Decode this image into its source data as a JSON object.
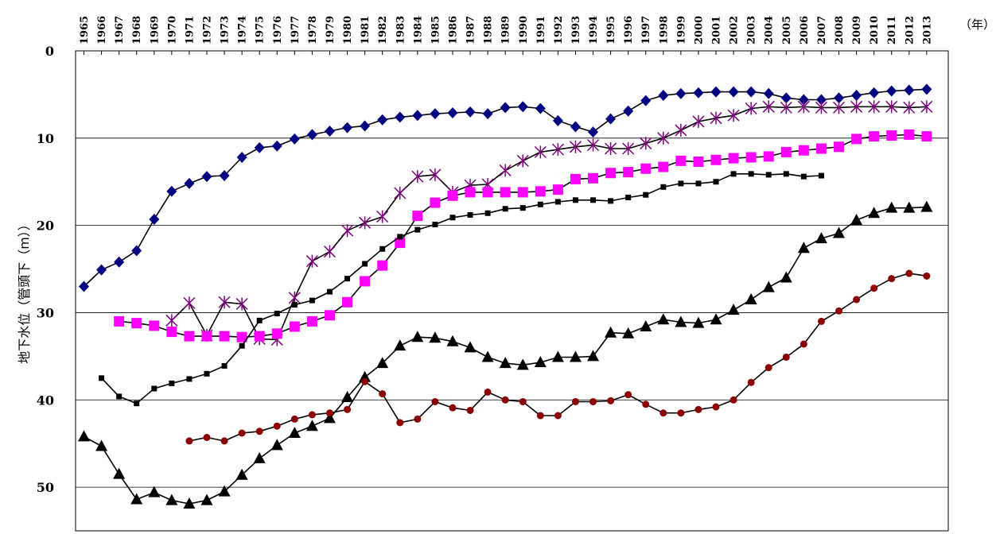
{
  "chart_data": {
    "type": "line",
    "title": "",
    "xlabel": "",
    "x_unit": "（年）",
    "ylabel": "地下水位（管頭下（m））",
    "y_inverted": true,
    "ylim": [
      0,
      55
    ],
    "yticks": [
      0,
      10,
      20,
      30,
      40,
      50
    ],
    "grid": "horizontal",
    "legend": "none",
    "x": [
      1965,
      1966,
      1967,
      1968,
      1969,
      1970,
      1971,
      1972,
      1973,
      1974,
      1975,
      1976,
      1977,
      1978,
      1979,
      1980,
      1981,
      1982,
      1983,
      1984,
      1985,
      1986,
      1987,
      1988,
      1989,
      1990,
      1991,
      1992,
      1993,
      1994,
      1995,
      1996,
      1997,
      1998,
      1999,
      2000,
      2001,
      2002,
      2003,
      2004,
      2005,
      2006,
      2007,
      2008,
      2009,
      2010,
      2011,
      2012,
      2013
    ],
    "series": [
      {
        "color": "#000080",
        "marker": "diamond",
        "values": [
          27.0,
          25.1,
          24.2,
          22.9,
          19.3,
          16.1,
          15.2,
          14.4,
          14.3,
          12.2,
          11.1,
          10.9,
          10.1,
          9.6,
          9.2,
          8.8,
          8.6,
          7.9,
          7.6,
          7.4,
          7.2,
          7.1,
          7.0,
          7.2,
          6.5,
          6.4,
          6.6,
          8.0,
          8.7,
          9.3,
          7.8,
          6.9,
          5.7,
          5.1,
          4.9,
          4.8,
          4.7,
          4.7,
          4.7,
          4.9,
          5.4,
          5.6,
          5.6,
          5.4,
          5.1,
          4.8,
          4.6,
          4.5,
          4.4
        ]
      },
      {
        "color": "#800080",
        "marker": "asterisk",
        "values": [
          null,
          null,
          null,
          null,
          null,
          30.9,
          28.9,
          32.6,
          28.8,
          29.0,
          33.0,
          33.1,
          28.3,
          24.1,
          23.0,
          20.6,
          19.7,
          19.0,
          16.3,
          14.4,
          14.2,
          16.2,
          15.4,
          15.3,
          13.7,
          12.6,
          11.6,
          11.3,
          11.0,
          10.8,
          11.2,
          11.2,
          10.6,
          10.0,
          9.1,
          8.1,
          7.7,
          7.4,
          6.6,
          6.4,
          6.5,
          6.4,
          6.5,
          6.5,
          6.4,
          6.4,
          6.4,
          6.5,
          6.4
        ]
      },
      {
        "color": "#FF00FF",
        "marker": "square",
        "values": [
          null,
          null,
          31.0,
          31.2,
          31.5,
          32.2,
          32.7,
          32.7,
          32.7,
          32.8,
          32.7,
          32.4,
          31.6,
          31.0,
          30.3,
          28.8,
          26.4,
          24.6,
          22.0,
          18.9,
          17.4,
          16.6,
          16.2,
          16.2,
          16.2,
          16.2,
          16.1,
          15.9,
          14.7,
          14.6,
          14.0,
          13.9,
          13.5,
          13.3,
          12.6,
          12.7,
          12.5,
          12.3,
          12.2,
          12.1,
          11.6,
          11.4,
          11.2,
          11.0,
          10.1,
          9.8,
          9.7,
          9.6,
          9.8
        ]
      },
      {
        "color": "#000000",
        "marker": "small-square",
        "values": [
          null,
          37.5,
          39.6,
          40.4,
          38.7,
          38.1,
          37.6,
          37.0,
          36.1,
          33.8,
          30.9,
          30.1,
          29.1,
          28.6,
          27.6,
          26.1,
          24.4,
          22.7,
          21.3,
          20.5,
          19.9,
          19.1,
          18.8,
          18.6,
          18.1,
          18.0,
          17.6,
          17.3,
          17.1,
          17.1,
          17.2,
          16.8,
          16.5,
          15.6,
          15.2,
          15.2,
          15.0,
          14.1,
          14.1,
          14.2,
          14.1,
          14.4,
          14.3,
          null,
          null,
          null,
          null,
          null,
          null
        ]
      },
      {
        "color": "#000000",
        "marker": "triangle",
        "values": [
          44.2,
          45.3,
          48.5,
          51.4,
          50.6,
          51.5,
          51.9,
          51.5,
          50.5,
          48.6,
          46.7,
          45.2,
          43.8,
          43.0,
          42.1,
          39.7,
          37.4,
          35.8,
          33.8,
          32.8,
          32.9,
          33.3,
          34.0,
          35.1,
          35.8,
          36.0,
          35.7,
          35.1,
          35.1,
          35.0,
          32.3,
          32.4,
          31.6,
          30.8,
          31.1,
          31.2,
          30.8,
          29.7,
          28.5,
          27.1,
          26.0,
          22.6,
          21.5,
          20.9,
          19.4,
          18.6,
          18.0,
          18.0,
          17.9
        ]
      },
      {
        "color": "#8B0000",
        "marker": "circle",
        "values": [
          null,
          null,
          null,
          null,
          null,
          null,
          44.7,
          44.3,
          44.7,
          43.8,
          43.6,
          43.0,
          42.2,
          41.7,
          41.5,
          41.1,
          37.9,
          39.3,
          42.6,
          42.2,
          40.2,
          40.9,
          41.2,
          39.1,
          40.0,
          40.2,
          41.8,
          41.8,
          40.2,
          40.2,
          40.1,
          39.4,
          40.5,
          41.5,
          41.5,
          41.1,
          40.8,
          40.0,
          38.0,
          36.3,
          35.1,
          33.6,
          31.0,
          29.8,
          28.5,
          27.2,
          26.1,
          25.5,
          25.8
        ]
      }
    ]
  }
}
